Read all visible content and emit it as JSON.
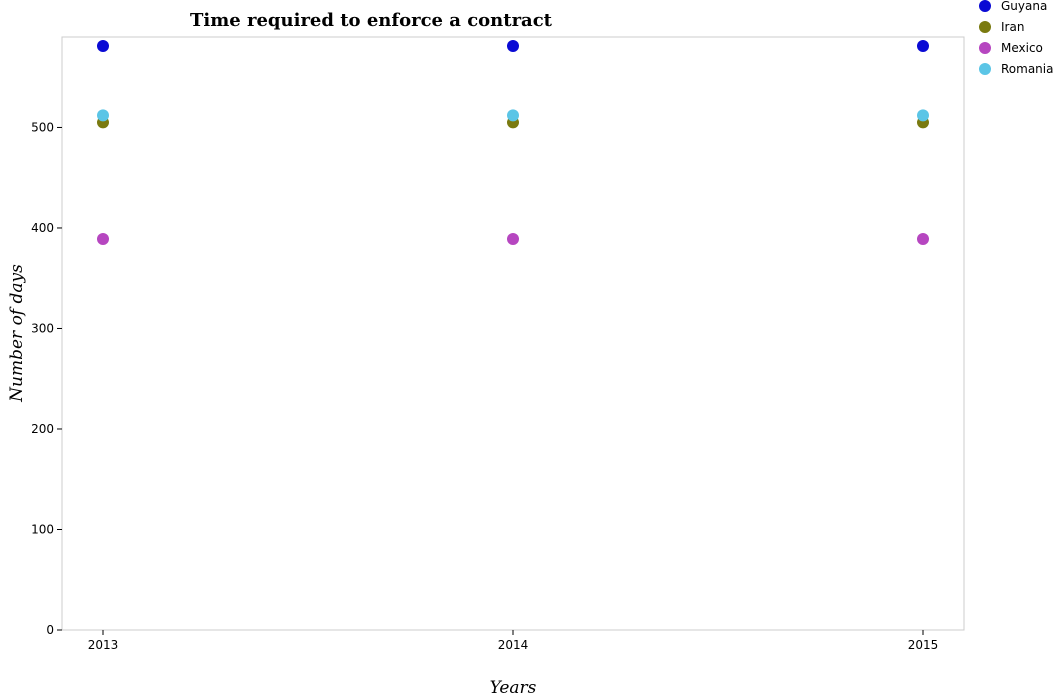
{
  "chart_data": {
    "type": "scatter",
    "title": "Time required to enforce a contract",
    "xlabel": "Years",
    "ylabel": "Number of days",
    "categories": [
      "2013",
      "2014",
      "2015"
    ],
    "ylim": [
      0,
      590
    ],
    "yticks": [
      0,
      100,
      200,
      300,
      400,
      500
    ],
    "grid": false,
    "legend_position": "top-right",
    "series": [
      {
        "name": "Guyana",
        "color": "#0a0ad4",
        "values": [
          581,
          581,
          581
        ]
      },
      {
        "name": "Iran",
        "color": "#7a7a10",
        "values": [
          505,
          505,
          505
        ]
      },
      {
        "name": "Mexico",
        "color": "#b646c0",
        "values": [
          389,
          389,
          389
        ]
      },
      {
        "name": "Romania",
        "color": "#5bc5e6",
        "values": [
          512,
          512,
          512
        ]
      }
    ]
  }
}
